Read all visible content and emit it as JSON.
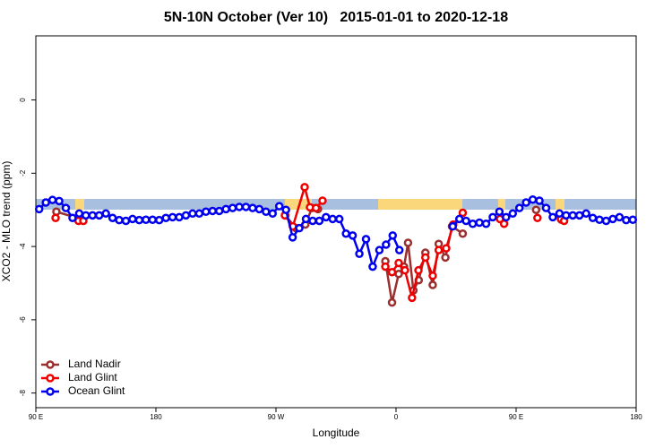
{
  "chart_data": {
    "type": "line",
    "title": "5N-10N October (Ver 10)   2015-01-01 to 2020-12-18",
    "x_label": "Longitude",
    "y_label": "XCO2 - MLO trend (ppm)",
    "xlim": [
      90,
      540
    ],
    "ylim": [
      -8.4,
      1.75
    ],
    "xticks": [
      {
        "value": 90,
        "label": "90 E"
      },
      180,
      {
        "value": 270,
        "label": "90 W"
      },
      {
        "value": 360,
        "label": "0"
      },
      {
        "value": 450,
        "label": "90 E"
      },
      {
        "value": 540,
        "label": "180"
      }
    ],
    "yticks": [
      0,
      -2,
      -4,
      -6,
      -8
    ],
    "legend": "lower left",
    "series": [
      {
        "name": "Land Nadir",
        "color": "#9b2f2f",
        "x": [
          105.4,
          123.6,
          null,
          277,
          285,
          292,
          297,
          301.5,
          null,
          352,
          357,
          362,
          366,
          369,
          373,
          377,
          382,
          387.5,
          392,
          397,
          402,
          410,
          null,
          465,
          null,
          484
        ],
        "values": [
          -3.05,
          -3.25,
          null,
          -3.15,
          -3.5,
          -3.4,
          -2.95,
          -2.98,
          null,
          -4.4,
          -5.53,
          -4.75,
          -4.55,
          -3.9,
          -5.2,
          -4.92,
          -4.17,
          -5.05,
          -3.93,
          -4.3,
          -3.45,
          -3.65,
          null,
          -3.0,
          null,
          -3.27
        ]
      },
      {
        "name": "Land Glint",
        "color": "#ee0000",
        "x": [
          104.8,
          null,
          122,
          125.6,
          null,
          276.7,
          282.7,
          291.5,
          295.5,
          300,
          304.9,
          null,
          352,
          357,
          362,
          366.7,
          372,
          376.8,
          382,
          387.5,
          392,
          397.6,
          402.9,
          410,
          null,
          437.9,
          441,
          null,
          466,
          null,
          483.6,
          486
        ],
        "values": [
          -3.22,
          null,
          -3.3,
          -3.3,
          null,
          -3.15,
          -3.45,
          -2.38,
          -2.93,
          -2.95,
          -2.75,
          null,
          -4.55,
          -4.7,
          -4.45,
          -4.65,
          -5.4,
          -4.65,
          -4.3,
          -4.8,
          -4.1,
          -4.05,
          -3.4,
          -3.08,
          null,
          -3.25,
          -3.38,
          null,
          -3.22,
          null,
          -3.25,
          -3.3
        ]
      },
      {
        "name": "Ocean Glint",
        "color": "#0000ee",
        "x": [
          92.5,
          97.5,
          102.5,
          107.5,
          112.5,
          117.5,
          122.5,
          127.5,
          132.5,
          137.5,
          142.5,
          147.5,
          152.5,
          157.5,
          162.5,
          167.5,
          172.5,
          177.5,
          182.5,
          187.5,
          192.5,
          197.5,
          202.5,
          207.5,
          212.5,
          217.5,
          222.5,
          227.5,
          232.5,
          237.5,
          242.5,
          247.5,
          252.5,
          257.5,
          262.5,
          267.5,
          272.5,
          277.5,
          282.5,
          287.5,
          292.5,
          297.5,
          302.5,
          307.5,
          312.5,
          317.5,
          322.5,
          327.5,
          332.5,
          337.5,
          342.5,
          347.5,
          352.5,
          357.5,
          362.5,
          367.5,
          372.5,
          377.5,
          382.5,
          387.5,
          392.5,
          397.5,
          402.5,
          407.5,
          412.5,
          417.5,
          422.5,
          427.5,
          432.5,
          437.5,
          442.5,
          447.5,
          452.5,
          457.5,
          462.5,
          467.5,
          472.5,
          477.5,
          482.5,
          487.5,
          492.5,
          497.5,
          502.5,
          507.5,
          512.5,
          517.5,
          522.5,
          527.5,
          532.5,
          537.5
        ],
        "values": [
          -2.98,
          -2.8,
          -2.73,
          -2.76,
          -2.95,
          -3.22,
          -3.1,
          -3.15,
          -3.15,
          -3.15,
          -3.1,
          -3.22,
          -3.28,
          -3.3,
          -3.25,
          -3.28,
          -3.27,
          -3.27,
          -3.28,
          -3.22,
          -3.2,
          -3.2,
          -3.15,
          -3.1,
          -3.1,
          -3.05,
          -3.03,
          -3.03,
          -2.98,
          -2.95,
          -2.92,
          -2.92,
          -2.95,
          -2.98,
          -3.05,
          -3.1,
          -2.9,
          -3.0,
          -3.75,
          -3.5,
          -3.25,
          -3.3,
          -3.3,
          -3.2,
          -3.25,
          -3.25,
          -3.65,
          -3.7,
          -4.2,
          -3.8,
          -4.55,
          -4.1,
          -3.95,
          -3.7,
          -4.1,
          null,
          null,
          null,
          null,
          null,
          null,
          null,
          -3.45,
          -3.25,
          -3.3,
          -3.38,
          -3.35,
          -3.38,
          -3.2,
          -3.05,
          -3.2,
          -3.1,
          -2.95,
          -2.8,
          -2.72,
          -2.75,
          -2.95,
          -3.2,
          -3.1,
          -3.15,
          -3.15,
          -3.15,
          -3.1,
          -3.22,
          -3.27,
          -3.3,
          -3.25,
          -3.2,
          -3.28,
          -3.27
        ]
      }
    ]
  }
}
